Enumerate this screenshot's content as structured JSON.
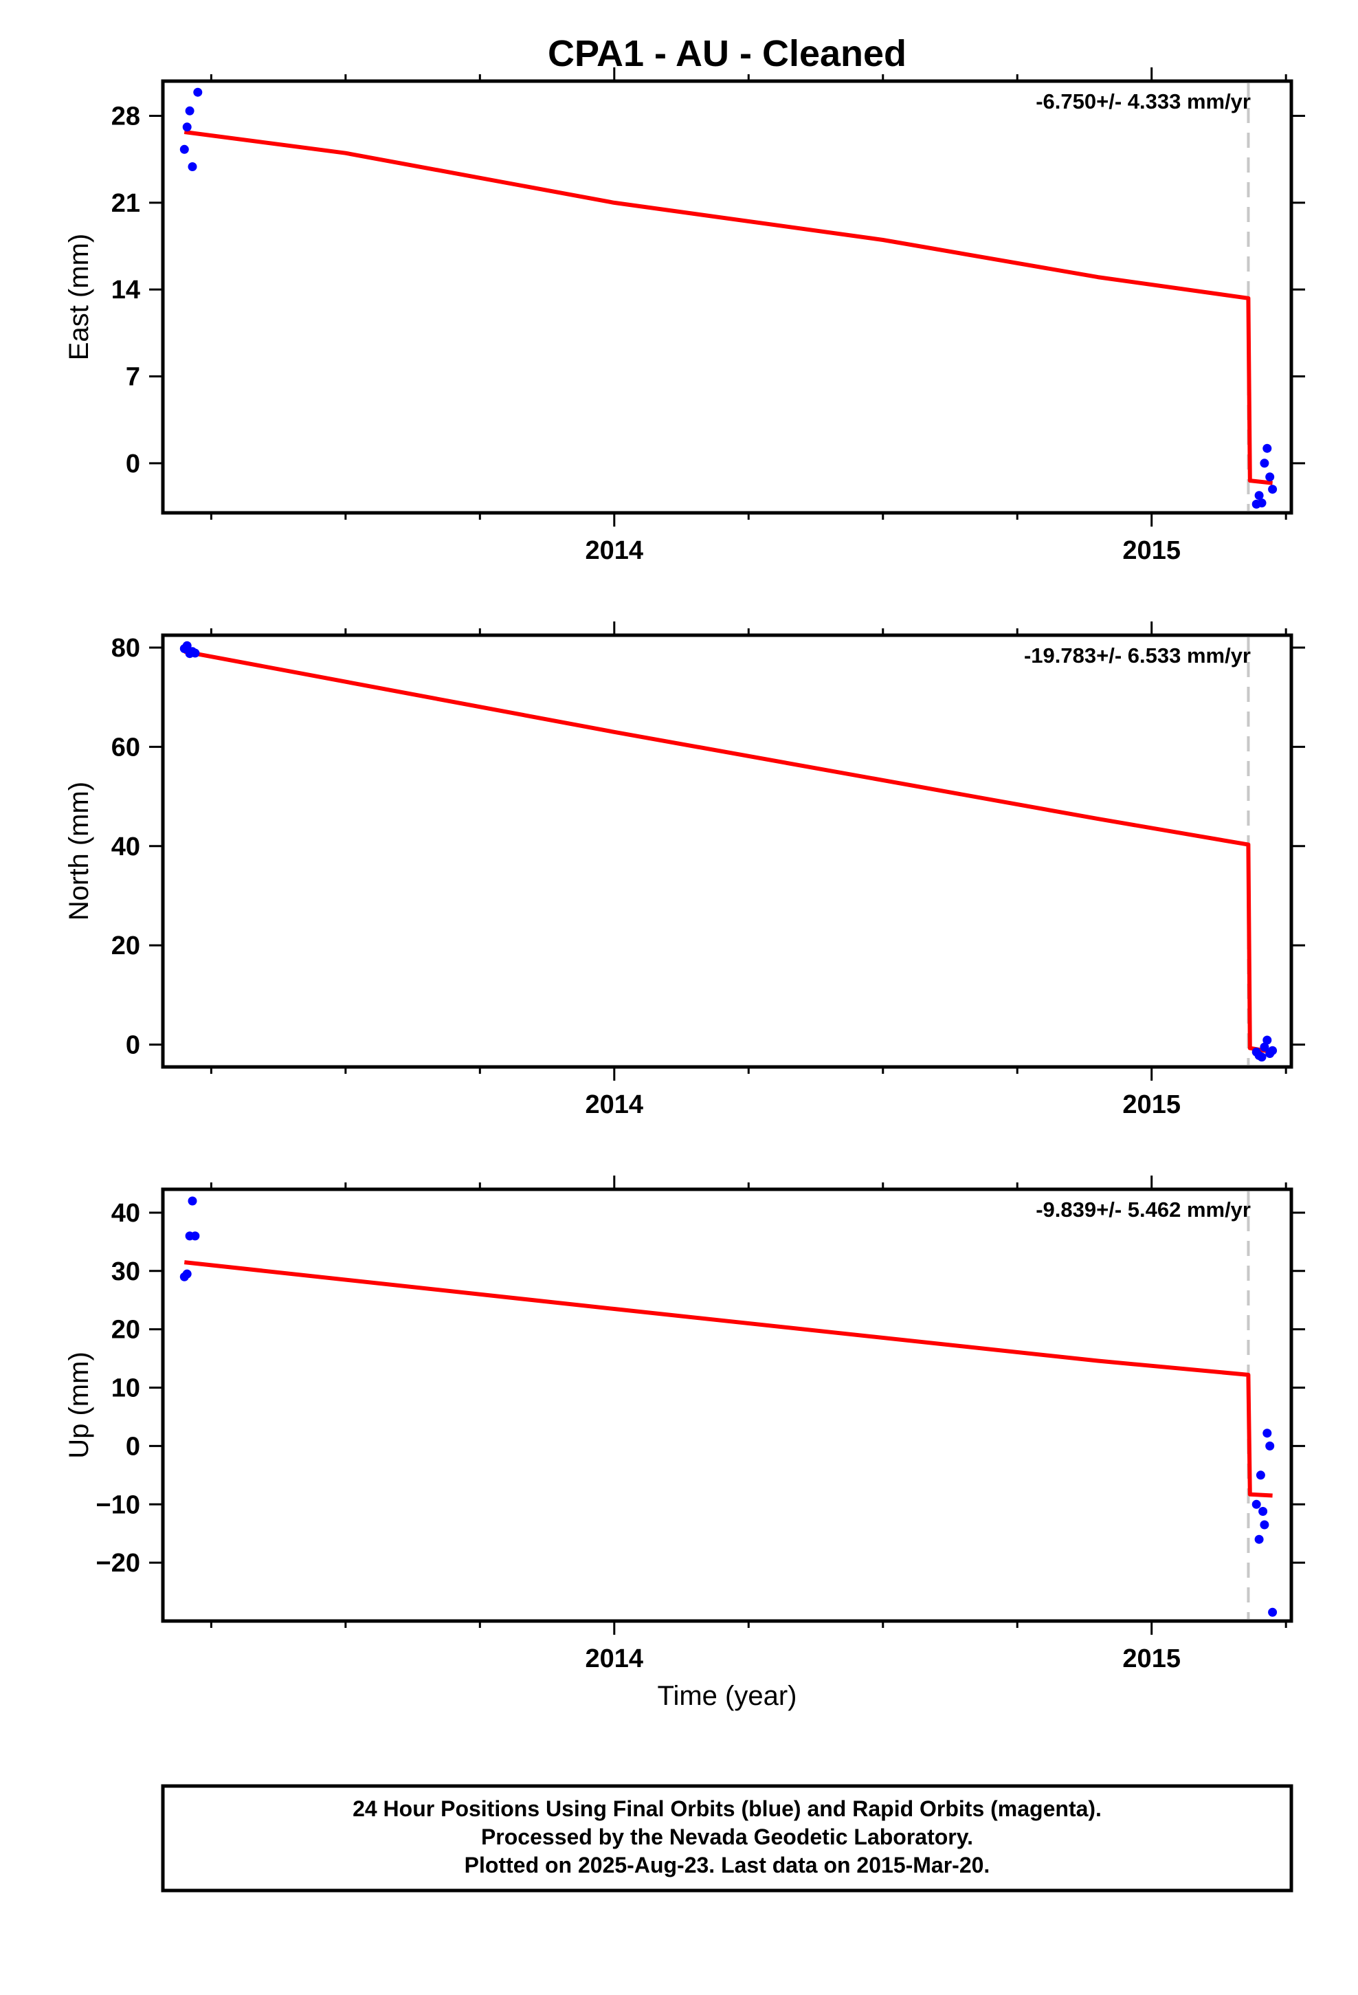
{
  "title": "CPA1  - AU - Cleaned",
  "colors": {
    "data_points": "#0000ff",
    "fit_line": "#ff0000",
    "break_line": "#c8c8c8",
    "frame": "#000000"
  },
  "x_axis": {
    "label": "Time (year)",
    "range": [
      2013.16,
      2015.26
    ],
    "major_ticks": [
      2014,
      2015
    ],
    "minor_ticks": [
      2013.25,
      2013.5,
      2013.75,
      2014.25,
      2014.5,
      2014.75,
      2015.25
    ]
  },
  "footer": {
    "line1": "24 Hour Positions Using Final Orbits (blue) and Rapid Orbits (magenta).",
    "line2": "Processed by the Nevada Geodetic Laboratory.",
    "line3": "Plotted on 2025-Aug-23. Last data on 2015-Mar-20."
  },
  "chart_data": [
    {
      "type": "scatter",
      "component": "east",
      "ylabel": "East (mm)",
      "ylim": [
        -4,
        30.8
      ],
      "yticks": [
        0,
        7,
        14,
        21,
        28
      ],
      "rate_label": "-6.750+/- 4.333 mm/yr",
      "equipment_break_year": 2015.18,
      "points": {
        "x": [
          2013.2,
          2013.205,
          2013.21,
          2013.215,
          2013.225,
          2015.195,
          2015.2,
          2015.205,
          2015.21,
          2015.215,
          2015.22,
          2015.225
        ],
        "y": [
          25.3,
          27.1,
          28.4,
          23.9,
          29.9,
          -3.3,
          -2.6,
          -3.2,
          0.0,
          1.2,
          -1.1,
          -2.1
        ]
      },
      "fit_line": {
        "x": [
          2013.2,
          2013.5,
          2014.0,
          2014.5,
          2014.9,
          2015.18,
          2015.183,
          2015.225
        ],
        "y": [
          26.7,
          25.0,
          21.0,
          18.0,
          15.0,
          13.3,
          -1.4,
          -1.6
        ]
      }
    },
    {
      "type": "scatter",
      "component": "north",
      "ylabel": "North (mm)",
      "ylim": [
        -4.5,
        82.5
      ],
      "yticks": [
        0,
        20,
        40,
        60,
        80
      ],
      "rate_label": "-19.783+/- 6.533 mm/yr",
      "equipment_break_year": 2015.18,
      "points": {
        "x": [
          2013.2,
          2013.205,
          2013.21,
          2013.215,
          2013.22,
          2015.195,
          2015.2,
          2015.205,
          2015.21,
          2015.215,
          2015.22,
          2015.225
        ],
        "y": [
          79.8,
          80.4,
          78.8,
          79.2,
          78.9,
          -1.5,
          -2.2,
          -2.5,
          -0.5,
          0.9,
          -1.8,
          -1.2
        ]
      },
      "fit_line": {
        "x": [
          2013.2,
          2014.0,
          2014.9,
          2015.18,
          2015.183,
          2015.225
        ],
        "y": [
          79.2,
          63.0,
          45.5,
          40.3,
          -0.7,
          -1.5
        ]
      }
    },
    {
      "type": "scatter",
      "component": "up",
      "ylabel": "Up (mm)",
      "ylim": [
        -30,
        44
      ],
      "yticks": [
        -20,
        -10,
        0,
        10,
        20,
        30,
        40
      ],
      "rate_label": "-9.839+/- 5.462 mm/yr",
      "equipment_break_year": 2015.18,
      "points": {
        "x": [
          2013.2,
          2013.205,
          2013.21,
          2013.215,
          2013.22,
          2015.195,
          2015.2,
          2015.203,
          2015.207,
          2015.21,
          2015.215,
          2015.22,
          2015.225
        ],
        "y": [
          29.0,
          29.5,
          36.0,
          42.0,
          36.0,
          -10.0,
          -16.0,
          -5.0,
          -11.2,
          -13.5,
          2.2,
          0.0,
          -28.5
        ]
      },
      "fit_line": {
        "x": [
          2013.2,
          2014.0,
          2014.9,
          2015.18,
          2015.183,
          2015.225
        ],
        "y": [
          31.5,
          23.5,
          14.6,
          12.2,
          -8.3,
          -8.5
        ]
      }
    }
  ]
}
